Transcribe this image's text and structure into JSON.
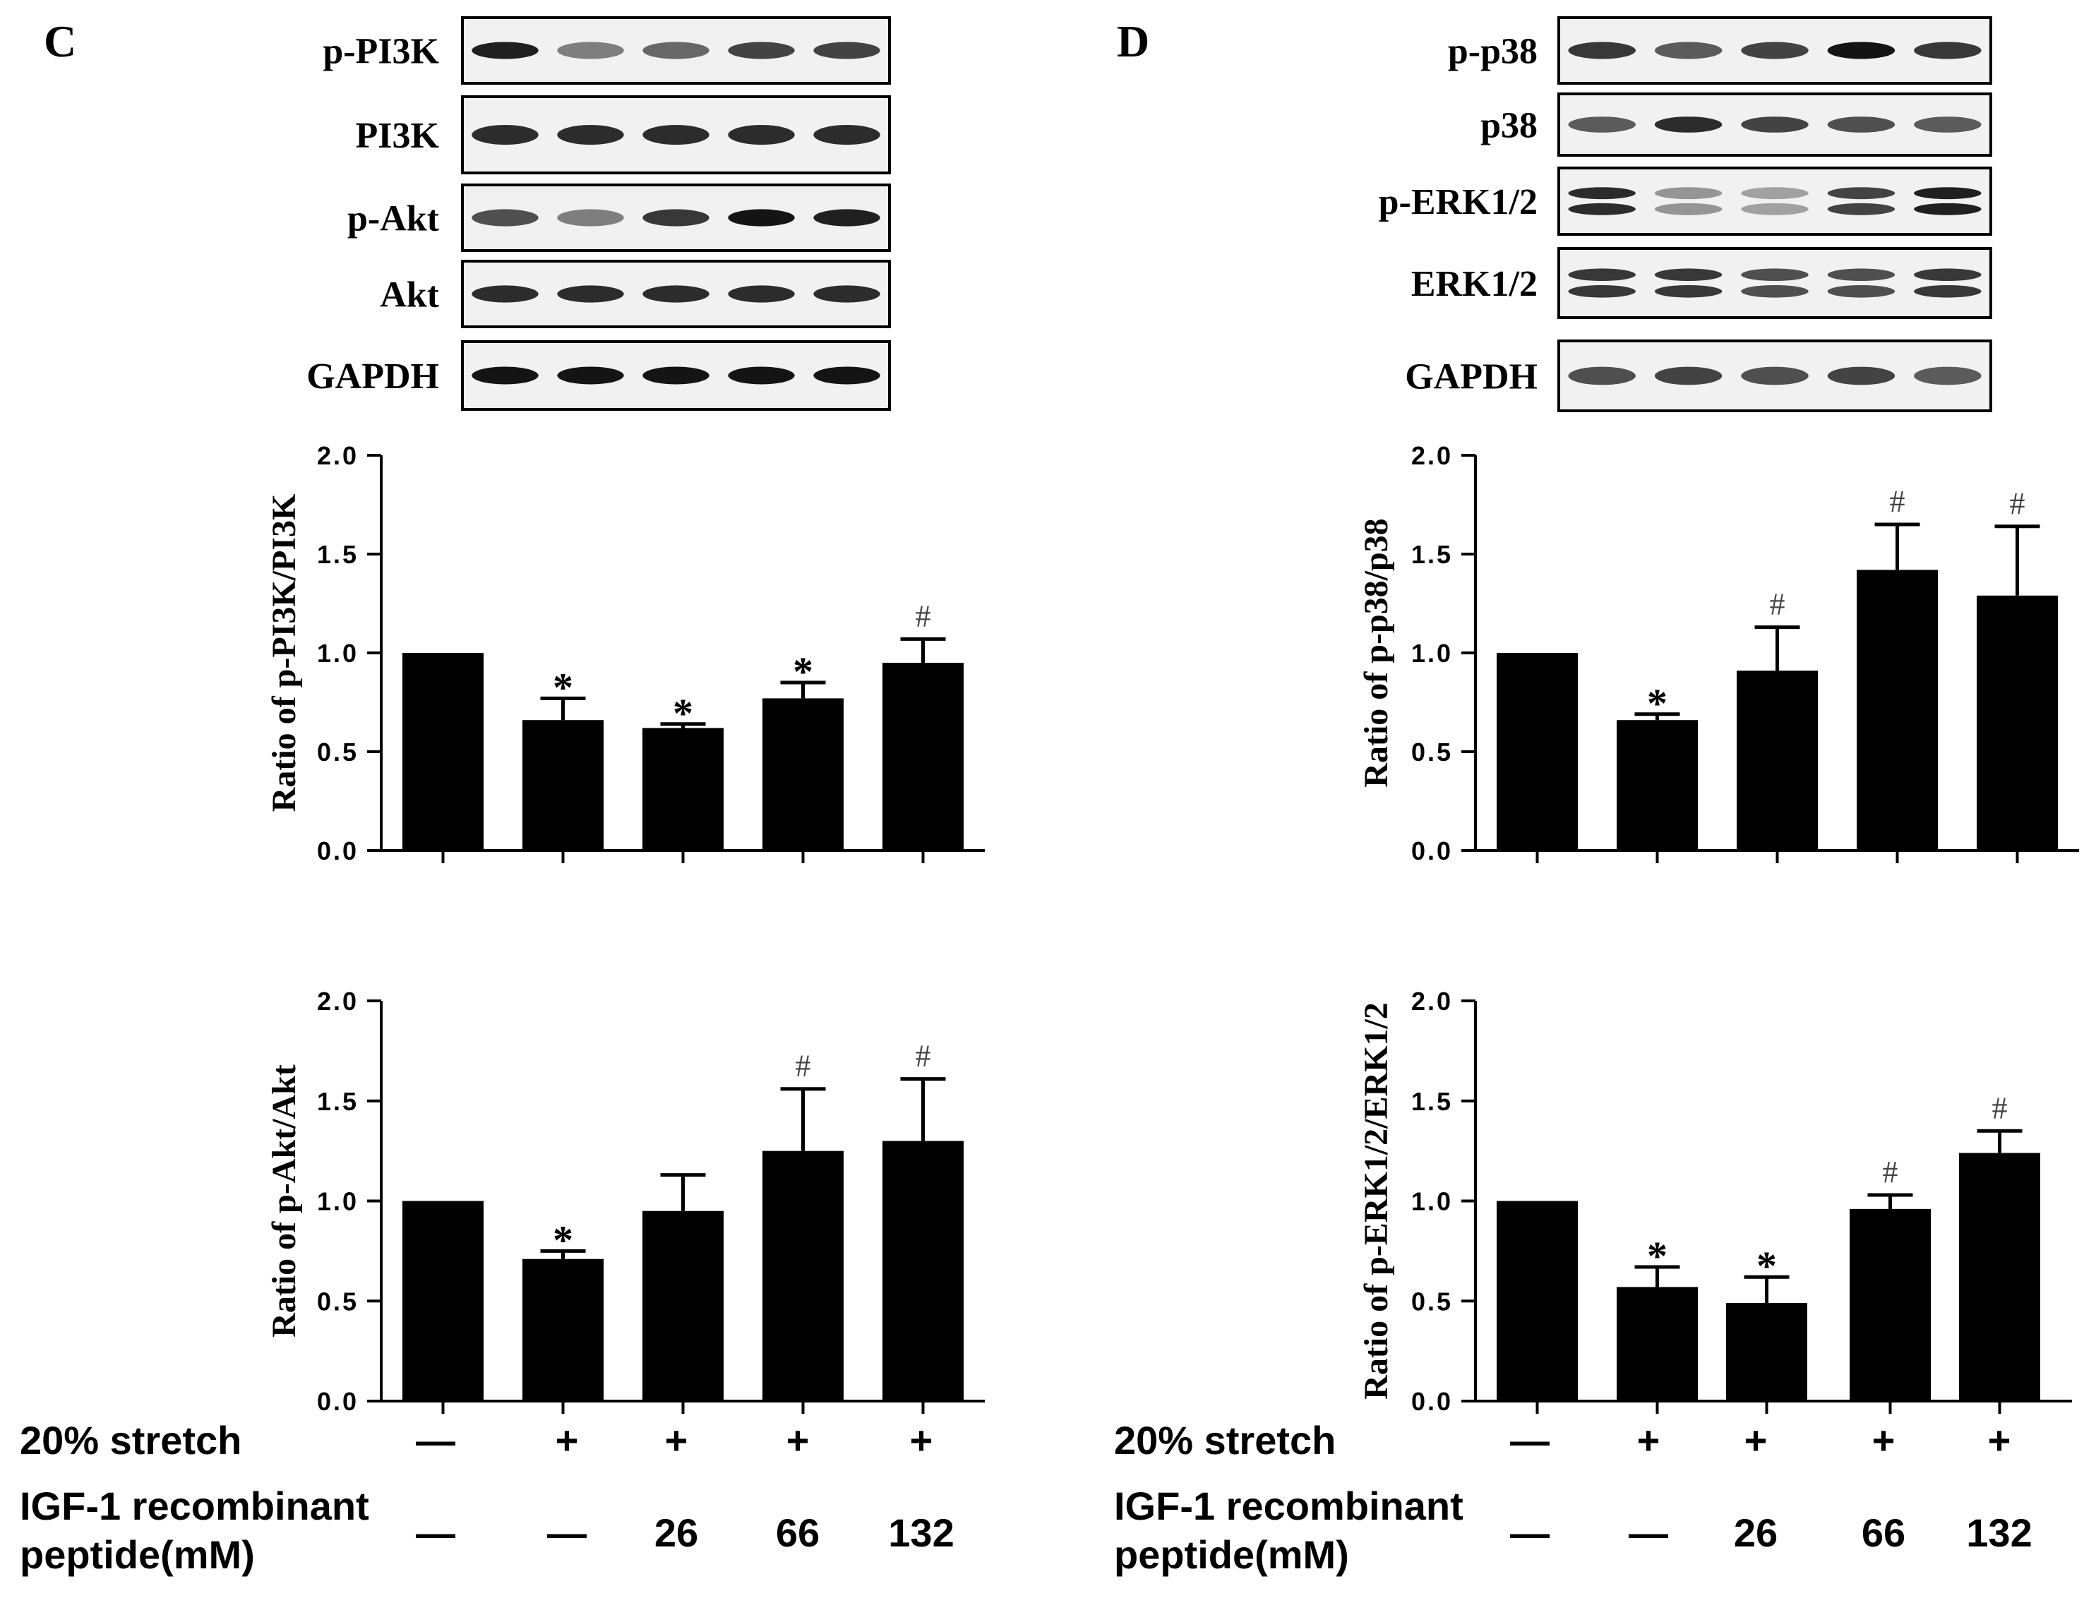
{
  "panels": [
    {
      "letter": "C",
      "blots": [
        {
          "label": "p-PI3K",
          "bands": [
            0.95,
            0.55,
            0.65,
            0.8,
            0.8
          ],
          "double": false
        },
        {
          "label": "PI3K",
          "bands": [
            0.9,
            0.9,
            0.9,
            0.9,
            0.9
          ],
          "double": false
        },
        {
          "label": "p-Akt",
          "bands": [
            0.75,
            0.55,
            0.85,
            1.0,
            0.95
          ],
          "double": false
        },
        {
          "label": "Akt",
          "bands": [
            0.9,
            0.9,
            0.9,
            0.9,
            0.9
          ],
          "double": false
        },
        {
          "label": "GAPDH",
          "bands": [
            1.0,
            1.0,
            1.0,
            1.0,
            1.0
          ],
          "double": false
        }
      ],
      "charts": [
        {
          "type": "bar",
          "ylabel": "Ratio of p-PI3K/PI3K",
          "ylim": [
            0,
            2.0
          ],
          "yticks": [
            "0.0",
            "0.5",
            "1.0",
            "1.5",
            "2.0"
          ],
          "values": [
            1.0,
            0.66,
            0.62,
            0.77,
            0.95
          ],
          "errors": [
            0,
            0.11,
            0.02,
            0.08,
            0.12
          ],
          "marks": [
            "",
            "*",
            "*",
            "*",
            "#"
          ]
        },
        {
          "type": "bar",
          "ylabel": "Ratio of p-Akt/Akt",
          "ylim": [
            0,
            2.0
          ],
          "yticks": [
            "0.0",
            "0.5",
            "1.0",
            "1.5",
            "2.0"
          ],
          "values": [
            1.0,
            0.71,
            0.95,
            1.25,
            1.3
          ],
          "errors": [
            0,
            0.04,
            0.18,
            0.31,
            0.31
          ],
          "marks": [
            "",
            "*",
            "",
            "#",
            "#"
          ]
        }
      ],
      "treatment": {
        "stretch_label": "20% stretch",
        "stretch": [
          "—",
          "+",
          "+",
          "+",
          "+"
        ],
        "igf_label_1": "IGF-1 recombinant",
        "igf_label_2": "peptide(mM)",
        "igf": [
          "—",
          "—",
          "26",
          "66",
          "132"
        ]
      }
    },
    {
      "letter": "D",
      "blots": [
        {
          "label": "p-p38",
          "bands": [
            0.85,
            0.7,
            0.8,
            1.0,
            0.85
          ],
          "double": false
        },
        {
          "label": "p38",
          "bands": [
            0.7,
            0.9,
            0.8,
            0.75,
            0.7
          ],
          "double": false
        },
        {
          "label": "p-ERK1/2",
          "bands": [
            0.9,
            0.45,
            0.4,
            0.8,
            0.95
          ],
          "double": true
        },
        {
          "label": "ERK1/2",
          "bands": [
            0.85,
            0.85,
            0.75,
            0.75,
            0.85
          ],
          "double": true
        },
        {
          "label": "GAPDH",
          "bands": [
            0.75,
            0.8,
            0.75,
            0.8,
            0.7
          ],
          "double": false
        }
      ],
      "charts": [
        {
          "type": "bar",
          "ylabel": "Ratio of p-p38/p38",
          "ylim": [
            0,
            2.0
          ],
          "yticks": [
            "0.0",
            "0.5",
            "1.0",
            "1.5",
            "2.0"
          ],
          "values": [
            1.0,
            0.66,
            0.91,
            1.42,
            1.29
          ],
          "errors": [
            0,
            0.03,
            0.22,
            0.23,
            0.35
          ],
          "marks": [
            "",
            "*",
            "#",
            "#",
            "#"
          ]
        },
        {
          "type": "bar",
          "ylabel": "Ratio of p-ERK1/2/ERK1/2",
          "ylim": [
            0,
            2.0
          ],
          "yticks": [
            "0.0",
            "0.5",
            "1.0",
            "1.5",
            "2.0"
          ],
          "values": [
            1.0,
            0.57,
            0.49,
            0.96,
            1.24
          ],
          "errors": [
            0,
            0.1,
            0.13,
            0.07,
            0.11
          ],
          "marks": [
            "",
            "*",
            "*",
            "#",
            "#"
          ]
        }
      ],
      "treatment": {
        "stretch_label": "20% stretch",
        "stretch": [
          "—",
          "+",
          "+",
          "+",
          "+"
        ],
        "igf_label_1": "IGF-1 recombinant",
        "igf_label_2": "peptide(mM)",
        "igf": [
          "—",
          "—",
          "26",
          "66",
          "132"
        ]
      }
    }
  ],
  "chart_data": [
    {
      "type": "bar",
      "categories": [
        "—/—",
        "+/—",
        "+/26",
        "+/66",
        "+/132"
      ],
      "values": [
        1.0,
        0.66,
        0.62,
        0.77,
        0.95
      ],
      "errors": [
        0,
        0.11,
        0.02,
        0.08,
        0.12
      ],
      "ylabel": "Ratio of p-PI3K/PI3K",
      "ylim": [
        0,
        2.0
      ]
    },
    {
      "type": "bar",
      "categories": [
        "—/—",
        "+/—",
        "+/26",
        "+/66",
        "+/132"
      ],
      "values": [
        1.0,
        0.71,
        0.95,
        1.25,
        1.3
      ],
      "errors": [
        0,
        0.04,
        0.18,
        0.31,
        0.31
      ],
      "ylabel": "Ratio of p-Akt/Akt",
      "ylim": [
        0,
        2.0
      ]
    },
    {
      "type": "bar",
      "categories": [
        "—/—",
        "+/—",
        "+/26",
        "+/66",
        "+/132"
      ],
      "values": [
        1.0,
        0.66,
        0.91,
        1.42,
        1.29
      ],
      "errors": [
        0,
        0.03,
        0.22,
        0.23,
        0.35
      ],
      "ylabel": "Ratio of p-p38/p38",
      "ylim": [
        0,
        2.0
      ]
    },
    {
      "type": "bar",
      "categories": [
        "—/—",
        "+/—",
        "+/26",
        "+/66",
        "+/132"
      ],
      "values": [
        1.0,
        0.57,
        0.49,
        0.96,
        1.24
      ],
      "errors": [
        0,
        0.1,
        0.13,
        0.07,
        0.11
      ],
      "ylabel": "Ratio of p-ERK1/2/ERK1/2",
      "ylim": [
        0,
        2.0
      ]
    }
  ]
}
